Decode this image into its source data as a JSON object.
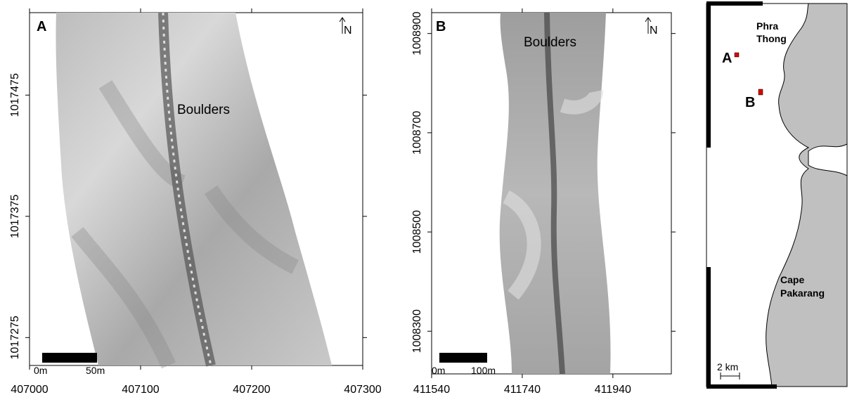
{
  "panels": [
    {
      "label": "A",
      "north": "N",
      "annotation": "Boulders",
      "scale_bar": {
        "start": "0m",
        "end": "50m"
      },
      "xlim": [
        407000,
        407300
      ],
      "xticks": [
        407000,
        407100,
        407200,
        407300
      ],
      "ylim": [
        1017252,
        1017543
      ],
      "yticks": [
        1017275,
        1017375,
        1017475
      ]
    },
    {
      "label": "B",
      "north": "N",
      "annotation": "Boulders",
      "scale_bar": {
        "start": "0m",
        "end": "100m"
      },
      "xlim": [
        411540,
        412069
      ],
      "xticks": [
        411540,
        411740,
        411940
      ],
      "ylim": [
        1008214,
        1008942
      ],
      "yticks": [
        1008300,
        1008500,
        1008700,
        1008900
      ]
    }
  ],
  "location_map": {
    "places": [
      [
        "Phra",
        "Thong"
      ],
      [
        "Cape",
        "Pakarang"
      ]
    ],
    "sites": [
      "A",
      "B"
    ],
    "scale": "2 km"
  }
}
